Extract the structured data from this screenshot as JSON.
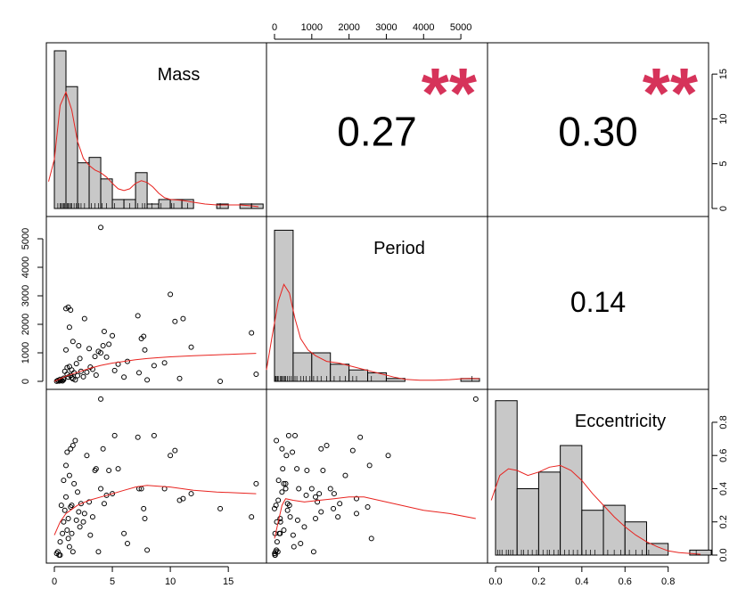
{
  "chart_data": {
    "type": "scatter",
    "variables": [
      "Mass",
      "Period",
      "Eccentricity"
    ],
    "correlations": [
      {
        "pair": [
          "Mass",
          "Period"
        ],
        "value": "0.27",
        "stars": "**"
      },
      {
        "pair": [
          "Mass",
          "Eccentricity"
        ],
        "value": "0.30",
        "stars": "**"
      },
      {
        "pair": [
          "Period",
          "Eccentricity"
        ],
        "value": "0.14",
        "stars": ""
      }
    ],
    "axes": {
      "mass": {
        "lim": [
          0,
          17.6
        ],
        "ticks": [
          "0",
          "5",
          "10",
          "15"
        ],
        "tick_values": [
          0,
          5,
          10,
          15
        ]
      },
      "period": {
        "lim": [
          0,
          5500
        ],
        "ticks": [
          "0",
          "1000",
          "2000",
          "3000",
          "4000",
          "5000"
        ],
        "tick_values": [
          0,
          1000,
          2000,
          3000,
          4000,
          5000
        ]
      },
      "eccentricity": {
        "lim": [
          0,
          0.95
        ],
        "ticks": [
          "0.0",
          "0.2",
          "0.4",
          "0.6",
          "0.8"
        ],
        "tick_values": [
          0,
          0.2,
          0.4,
          0.6,
          0.8
        ]
      },
      "count": {
        "lim": [
          0,
          17.6
        ],
        "ticks": [
          "0",
          "5",
          "10",
          "15"
        ],
        "tick_values": [
          0,
          5,
          10,
          15
        ]
      }
    },
    "histograms": {
      "Mass": {
        "breaks": [
          0,
          1,
          2,
          3,
          4,
          5,
          6,
          7,
          8,
          9,
          10,
          11,
          12,
          13,
          14,
          15,
          16,
          17,
          18
        ],
        "counts": [
          17.6,
          13.6,
          5.1,
          5.7,
          3.3,
          1.0,
          1.0,
          4.0,
          0.5,
          1.0,
          1.0,
          1.0,
          0,
          0,
          0.5,
          0,
          0.5,
          0.5
        ]
      },
      "Period": {
        "breaks": [
          0,
          500,
          1000,
          1500,
          2000,
          2500,
          3000,
          3500,
          4000,
          4500,
          5000,
          5500
        ],
        "counts": [
          53,
          10,
          10,
          6,
          4,
          3,
          1,
          0,
          0,
          0,
          1
        ]
      },
      "Eccentricity": {
        "breaks": [
          0,
          0.1,
          0.2,
          0.3,
          0.4,
          0.5,
          0.6,
          0.7,
          0.8,
          0.9,
          1.0
        ],
        "counts": [
          0.93,
          0.4,
          0.5,
          0.66,
          0.27,
          0.3,
          0.2,
          0.07,
          0,
          0.03
        ]
      }
    },
    "densities": {
      "Mass": [
        [
          -0.5,
          3
        ],
        [
          0,
          5.5
        ],
        [
          0.5,
          11.5
        ],
        [
          1,
          13
        ],
        [
          1.5,
          11
        ],
        [
          2,
          7.5
        ],
        [
          2.5,
          5.6
        ],
        [
          3,
          4.8
        ],
        [
          3.5,
          4.3
        ],
        [
          4,
          4
        ],
        [
          4.5,
          3.5
        ],
        [
          5,
          2.8
        ],
        [
          5.5,
          2.2
        ],
        [
          6,
          2
        ],
        [
          6.5,
          2.2
        ],
        [
          7,
          2.8
        ],
        [
          7.5,
          3.1
        ],
        [
          8,
          2.9
        ],
        [
          8.5,
          2.4
        ],
        [
          9,
          1.7
        ],
        [
          9.5,
          1.2
        ],
        [
          10,
          1
        ],
        [
          11,
          0.9
        ],
        [
          12,
          0.7
        ],
        [
          13,
          0.5
        ],
        [
          14,
          0.4
        ],
        [
          15,
          0.4
        ],
        [
          16,
          0.4
        ],
        [
          17,
          0.3
        ],
        [
          17.6,
          0.2
        ]
      ],
      "Period": [
        [
          -300,
          4
        ],
        [
          -100,
          13
        ],
        [
          100,
          28
        ],
        [
          250,
          34
        ],
        [
          400,
          31
        ],
        [
          550,
          22
        ],
        [
          700,
          15
        ],
        [
          900,
          11
        ],
        [
          1100,
          9
        ],
        [
          1400,
          7
        ],
        [
          1700,
          6.5
        ],
        [
          2000,
          5.5
        ],
        [
          2300,
          4.5
        ],
        [
          2600,
          3.5
        ],
        [
          2900,
          2.5
        ],
        [
          3200,
          1.5
        ],
        [
          3500,
          0.7
        ],
        [
          3900,
          0.4
        ],
        [
          4300,
          0.4
        ],
        [
          4700,
          0.6
        ],
        [
          5000,
          0.9
        ],
        [
          5300,
          1
        ],
        [
          5500,
          0.9
        ]
      ],
      "Eccentricity": [
        [
          -0.02,
          0.33
        ],
        [
          0.02,
          0.48
        ],
        [
          0.06,
          0.52
        ],
        [
          0.1,
          0.51
        ],
        [
          0.15,
          0.48
        ],
        [
          0.2,
          0.5
        ],
        [
          0.25,
          0.53
        ],
        [
          0.3,
          0.54
        ],
        [
          0.35,
          0.51
        ],
        [
          0.4,
          0.45
        ],
        [
          0.45,
          0.37
        ],
        [
          0.5,
          0.3
        ],
        [
          0.55,
          0.23
        ],
        [
          0.6,
          0.17
        ],
        [
          0.65,
          0.12
        ],
        [
          0.7,
          0.08
        ],
        [
          0.75,
          0.05
        ],
        [
          0.8,
          0.025
        ],
        [
          0.85,
          0.015
        ],
        [
          0.9,
          0.01
        ],
        [
          0.95,
          0.005
        ]
      ]
    },
    "rugs": {
      "Mass": [
        0.3,
        0.5,
        0.6,
        0.7,
        0.8,
        0.9,
        1.0,
        1.1,
        1.2,
        1.3,
        1.4,
        1.5,
        1.7,
        1.9,
        2.1,
        2.3,
        2.6,
        3.0,
        3.2,
        3.5,
        3.8,
        4.1,
        4.5,
        5.2,
        6.0,
        6.5,
        7.2,
        7.6,
        7.8,
        8.4,
        9.2,
        10.1,
        10.3,
        11.0,
        11.5,
        14.3,
        17.0
      ],
      "Period": [
        10,
        30,
        50,
        80,
        100,
        150,
        180,
        210,
        240,
        270,
        300,
        350,
        400,
        450,
        500,
        550,
        600,
        700,
        780,
        850,
        950,
        1050,
        1150,
        1250,
        1400,
        1600,
        1750,
        1900,
        2100,
        2200,
        2600,
        3000,
        5300
      ],
      "Eccentricity": [
        0.01,
        0.02,
        0.03,
        0.05,
        0.06,
        0.07,
        0.08,
        0.1,
        0.12,
        0.13,
        0.15,
        0.17,
        0.19,
        0.2,
        0.22,
        0.24,
        0.25,
        0.27,
        0.29,
        0.3,
        0.32,
        0.34,
        0.36,
        0.38,
        0.4,
        0.42,
        0.44,
        0.46,
        0.5,
        0.52,
        0.55,
        0.58,
        0.6,
        0.62,
        0.65,
        0.68,
        0.71,
        0.93
      ]
    },
    "points": [
      {
        "mass": 0.2,
        "period": 5,
        "ecc": 0.01
      },
      {
        "mass": 0.3,
        "period": 30,
        "ecc": 0.02
      },
      {
        "mass": 0.4,
        "period": 10,
        "ecc": 0.0
      },
      {
        "mass": 0.5,
        "period": 70,
        "ecc": 0.08
      },
      {
        "mass": 0.5,
        "period": 20,
        "ecc": 0.0
      },
      {
        "mass": 0.6,
        "period": 40,
        "ecc": 0.3
      },
      {
        "mass": 0.7,
        "period": 15,
        "ecc": 0.13
      },
      {
        "mass": 0.8,
        "period": 60,
        "ecc": 0.2
      },
      {
        "mass": 0.8,
        "period": 110,
        "ecc": 0.45
      },
      {
        "mass": 0.9,
        "period": 350,
        "ecc": 0.27
      },
      {
        "mass": 1.0,
        "period": 2550,
        "ecc": 0.54
      },
      {
        "mass": 1.0,
        "period": 1100,
        "ecc": 0.35
      },
      {
        "mass": 1.1,
        "period": 250,
        "ecc": 0.15
      },
      {
        "mass": 1.1,
        "period": 480,
        "ecc": 0.62
      },
      {
        "mass": 1.2,
        "period": 2600,
        "ecc": 0.1
      },
      {
        "mass": 1.2,
        "period": 150,
        "ecc": 0.22
      },
      {
        "mass": 1.3,
        "period": 1900,
        "ecc": 0.48
      },
      {
        "mass": 1.3,
        "period": 520,
        "ecc": 0.05
      },
      {
        "mass": 1.4,
        "period": 2500,
        "ecc": 0.29
      },
      {
        "mass": 1.4,
        "period": 200,
        "ecc": 0.64
      },
      {
        "mass": 1.5,
        "period": 130,
        "ecc": 0.13
      },
      {
        "mass": 1.5,
        "period": 400,
        "ecc": 0.3
      },
      {
        "mass": 1.6,
        "period": 90,
        "ecc": 0.02
      },
      {
        "mass": 1.6,
        "period": 1400,
        "ecc": 0.66
      },
      {
        "mass": 1.7,
        "period": 300,
        "ecc": 0.43
      },
      {
        "mass": 1.8,
        "period": 50,
        "ecc": 0.69
      },
      {
        "mass": 1.9,
        "period": 620,
        "ecc": 0.21
      },
      {
        "mass": 2.0,
        "period": 200,
        "ecc": 0.38
      },
      {
        "mass": 2.1,
        "period": 1250,
        "ecc": 0.26
      },
      {
        "mass": 2.2,
        "period": 800,
        "ecc": 0.17
      },
      {
        "mass": 2.3,
        "period": 350,
        "ecc": 0.31
      },
      {
        "mass": 2.5,
        "period": 160,
        "ecc": 0.2
      },
      {
        "mass": 2.6,
        "period": 2200,
        "ecc": 0.25
      },
      {
        "mass": 2.8,
        "period": 320,
        "ecc": 0.6
      },
      {
        "mass": 3.0,
        "period": 1150,
        "ecc": 0.32
      },
      {
        "mass": 3.1,
        "period": 500,
        "ecc": 0.12
      },
      {
        "mass": 3.3,
        "period": 420,
        "ecc": 0.23
      },
      {
        "mass": 3.5,
        "period": 870,
        "ecc": 0.51
      },
      {
        "mass": 3.6,
        "period": 220,
        "ecc": 0.52
      },
      {
        "mass": 3.8,
        "period": 1050,
        "ecc": 0.02
      },
      {
        "mass": 4.0,
        "period": 5400,
        "ecc": 0.94
      },
      {
        "mass": 4.0,
        "period": 1000,
        "ecc": 0.4
      },
      {
        "mass": 4.2,
        "period": 1250,
        "ecc": 0.64
      },
      {
        "mass": 4.3,
        "period": 1750,
        "ecc": 0.31
      },
      {
        "mass": 4.5,
        "period": 850,
        "ecc": 0.36
      },
      {
        "mass": 4.7,
        "period": 1300,
        "ecc": 0.51
      },
      {
        "mass": 5.0,
        "period": 1600,
        "ecc": 0.37
      },
      {
        "mass": 5.2,
        "period": 380,
        "ecc": 0.72
      },
      {
        "mass": 5.5,
        "period": 600,
        "ecc": 0.52
      },
      {
        "mass": 6.0,
        "period": 150,
        "ecc": 0.13
      },
      {
        "mass": 6.3,
        "period": 700,
        "ecc": 0.07
      },
      {
        "mass": 7.2,
        "period": 2300,
        "ecc": 0.71
      },
      {
        "mass": 7.3,
        "period": 300,
        "ecc": 0.4
      },
      {
        "mass": 7.5,
        "period": 1500,
        "ecc": 0.4
      },
      {
        "mass": 7.7,
        "period": 1580,
        "ecc": 0.28
      },
      {
        "mass": 7.8,
        "period": 1100,
        "ecc": 0.22
      },
      {
        "mass": 8.0,
        "period": 50,
        "ecc": 0.03
      },
      {
        "mass": 8.6,
        "period": 550,
        "ecc": 0.72
      },
      {
        "mass": 9.5,
        "period": 650,
        "ecc": 0.4
      },
      {
        "mass": 10.0,
        "period": 3050,
        "ecc": 0.6
      },
      {
        "mass": 10.4,
        "period": 2100,
        "ecc": 0.63
      },
      {
        "mass": 10.8,
        "period": 100,
        "ecc": 0.33
      },
      {
        "mass": 11.1,
        "period": 2200,
        "ecc": 0.34
      },
      {
        "mass": 11.8,
        "period": 1200,
        "ecc": 0.37
      },
      {
        "mass": 14.3,
        "period": 0,
        "ecc": 0.28
      },
      {
        "mass": 17.0,
        "period": 1700,
        "ecc": 0.23
      },
      {
        "mass": 17.4,
        "period": 250,
        "ecc": 0.43
      }
    ],
    "smooth_lines": {
      "period_vs_mass": [
        [
          0,
          0
        ],
        [
          1,
          180
        ],
        [
          2,
          320
        ],
        [
          3,
          450
        ],
        [
          4,
          560
        ],
        [
          5,
          640
        ],
        [
          6,
          700
        ],
        [
          7,
          760
        ],
        [
          8,
          800
        ],
        [
          9,
          830
        ],
        [
          10,
          860
        ],
        [
          12,
          900
        ],
        [
          14,
          930
        ],
        [
          16,
          960
        ],
        [
          17.4,
          980
        ]
      ],
      "ecc_vs_mass": [
        [
          0,
          0.12
        ],
        [
          0.5,
          0.2
        ],
        [
          1,
          0.25
        ],
        [
          2,
          0.3
        ],
        [
          3,
          0.33
        ],
        [
          4,
          0.35
        ],
        [
          5,
          0.37
        ],
        [
          6,
          0.39
        ],
        [
          7,
          0.41
        ],
        [
          8,
          0.42
        ],
        [
          9,
          0.415
        ],
        [
          10,
          0.41
        ],
        [
          12,
          0.39
        ],
        [
          14,
          0.38
        ],
        [
          17.4,
          0.37
        ]
      ],
      "ecc_vs_period": [
        [
          0,
          0.1
        ],
        [
          100,
          0.2
        ],
        [
          200,
          0.3
        ],
        [
          300,
          0.34
        ],
        [
          500,
          0.33
        ],
        [
          800,
          0.32
        ],
        [
          1200,
          0.33
        ],
        [
          1600,
          0.34
        ],
        [
          2000,
          0.35
        ],
        [
          2400,
          0.35
        ],
        [
          2800,
          0.33
        ],
        [
          3400,
          0.3
        ],
        [
          4000,
          0.27
        ],
        [
          4700,
          0.25
        ],
        [
          5400,
          0.22
        ]
      ]
    }
  }
}
